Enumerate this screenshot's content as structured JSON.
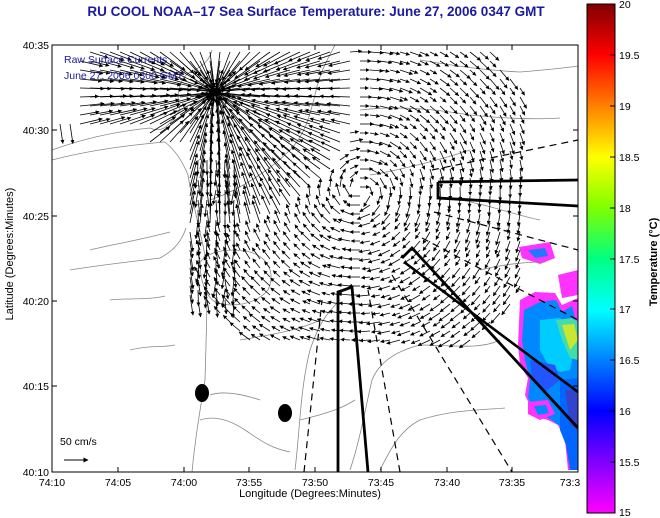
{
  "figure": {
    "title": "RU COOL   NOAA–17  Sea Surface Temperature:  June 27, 2006 0347 GMT",
    "ylabel": "Latitude (Degrees:Minutes)",
    "xlabel": "Longitude (Degrees:Minutes)",
    "colorbar_label": "Temperature (°C)",
    "legend_line1": "Raw Surface Currents",
    "legend_line2": "June 27, 2006 0300 GMT",
    "scale_label": "50 cm/s"
  },
  "axes": {
    "y_ticks": [
      "40:35",
      "40:30",
      "40:25",
      "40:20",
      "40:15",
      "40:10"
    ],
    "x_ticks": [
      "74:10",
      "74:05",
      "74:00",
      "73:55",
      "73:50",
      "73:45",
      "73:40",
      "73:35",
      "73:3"
    ]
  },
  "colorbar": {
    "range": [
      15,
      20
    ],
    "ticks": [
      "20",
      "19.5",
      "19",
      "18.5",
      "18",
      "17.5",
      "17",
      "16.5",
      "16",
      "15.5",
      "15"
    ],
    "colors": [
      "#ff00ff",
      "#8000ff",
      "#0000ff",
      "#0080ff",
      "#00ffff",
      "#00ff80",
      "#80ff00",
      "#ffff00",
      "#ff8000",
      "#ff0000",
      "#800000"
    ]
  },
  "colors": {
    "title": "#1a1a9e",
    "frame": "#000000",
    "contour": "#888888",
    "vector": "#000000"
  }
}
